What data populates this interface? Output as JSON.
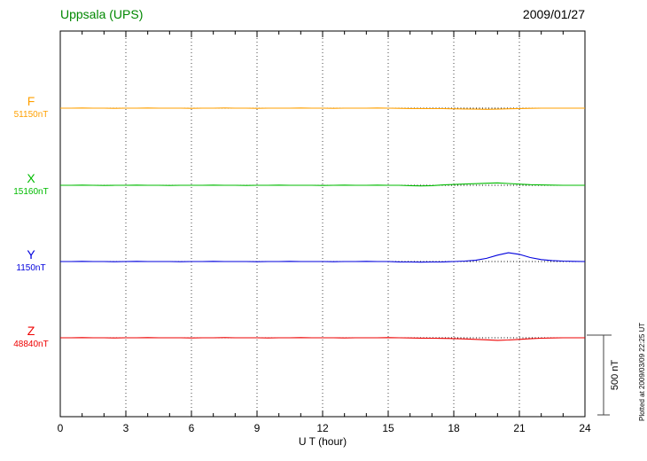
{
  "header": {
    "station": "Uppsala (UPS)",
    "date": "2009/01/27"
  },
  "axis": {
    "xlabel": "U T (hour)",
    "x_ticks": [
      0,
      3,
      6,
      9,
      12,
      15,
      18,
      21,
      24
    ]
  },
  "scale_bar": {
    "label": "500 nT",
    "nT": 500
  },
  "footer_note": "Plotted at 2009/03/09 22:25 UT",
  "colors": {
    "title": "#008800",
    "axis": "#000000",
    "scale_bar": "#444444"
  },
  "chart_data": {
    "type": "line",
    "title": "Uppsala (UPS) magnetogram 2009/01/27",
    "xlabel": "U T (hour)",
    "x_range": [
      0,
      24
    ],
    "x_step": 0.5,
    "x_description": "values sampled every 0.5 hour from 0 to 24 UT",
    "scale_nT_per_div": 500,
    "grid": "vertical dotted lines every 3 hours; dotted black baseline per trace",
    "series": [
      {
        "name": "F",
        "value_label": "51150nT",
        "base": 51150,
        "color": "#FFA000",
        "values": [
          51150,
          51150,
          51151,
          51150,
          51150,
          51149,
          51150,
          51150,
          51151,
          51150,
          51150,
          51150,
          51149,
          51150,
          51150,
          51151,
          51150,
          51150,
          51149,
          51150,
          51150,
          51150,
          51151,
          51150,
          51150,
          51149,
          51150,
          51150,
          51150,
          51151,
          51150,
          51149,
          51148,
          51148,
          51147,
          51147,
          51146,
          51145,
          51144,
          51143,
          51144,
          51146,
          51148,
          51149,
          51150,
          51150,
          51150,
          51150,
          51150
        ]
      },
      {
        "name": "X",
        "value_label": "15160nT",
        "base": 15160,
        "color": "#00BB00",
        "values": [
          15160,
          15160,
          15161,
          15160,
          15159,
          15160,
          15160,
          15161,
          15160,
          15160,
          15159,
          15160,
          15160,
          15160,
          15161,
          15160,
          15160,
          15159,
          15160,
          15160,
          15161,
          15160,
          15160,
          15160,
          15159,
          15160,
          15161,
          15160,
          15160,
          15161,
          15160,
          15160,
          15158,
          15156,
          15158,
          15162,
          15165,
          15168,
          15170,
          15173,
          15175,
          15171,
          15167,
          15164,
          15162,
          15161,
          15160,
          15160,
          15160
        ]
      },
      {
        "name": "Y",
        "value_label": "1150nT",
        "base": 1150,
        "color": "#0000DD",
        "values": [
          1150,
          1150,
          1151,
          1150,
          1150,
          1149,
          1150,
          1151,
          1150,
          1150,
          1150,
          1149,
          1150,
          1150,
          1151,
          1150,
          1150,
          1150,
          1149,
          1150,
          1150,
          1151,
          1150,
          1150,
          1150,
          1149,
          1150,
          1150,
          1151,
          1150,
          1150,
          1148,
          1147,
          1146,
          1147,
          1148,
          1150,
          1153,
          1158,
          1170,
          1190,
          1205,
          1195,
          1175,
          1162,
          1156,
          1153,
          1151,
          1150
        ]
      },
      {
        "name": "Z",
        "value_label": "48840nT",
        "base": 48840,
        "color": "#EE0000",
        "values": [
          48840,
          48840,
          48841,
          48840,
          48840,
          48839,
          48840,
          48840,
          48841,
          48840,
          48840,
          48840,
          48839,
          48840,
          48840,
          48841,
          48840,
          48840,
          48840,
          48839,
          48840,
          48840,
          48841,
          48840,
          48840,
          48840,
          48839,
          48840,
          48840,
          48840,
          48841,
          48840,
          48839,
          48838,
          48837,
          48836,
          48835,
          48833,
          48830,
          48827,
          48824,
          48826,
          48830,
          48834,
          48837,
          48839,
          48840,
          48840,
          48840
        ]
      }
    ]
  }
}
